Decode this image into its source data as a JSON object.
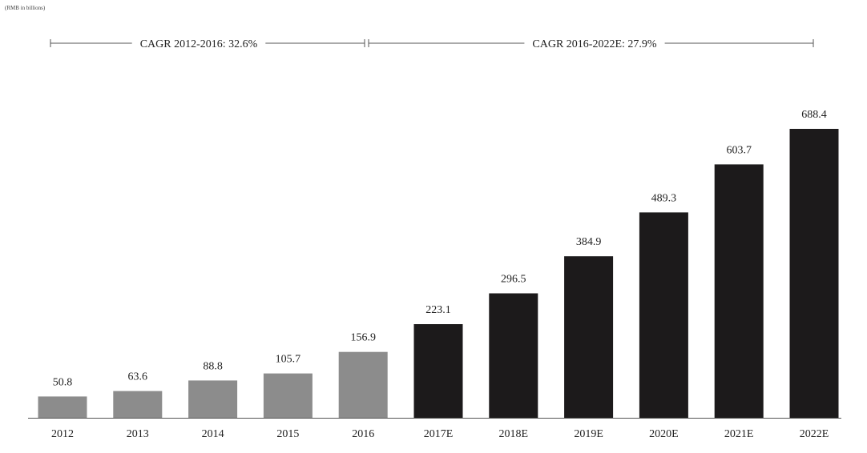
{
  "unit_note": "(RMB in billions)",
  "colors": {
    "historical": "#8c8c8c",
    "forecast": "#1c1a1b",
    "axis": "#555555",
    "text": "#222222"
  },
  "chart_data": {
    "type": "bar",
    "categories": [
      "2012",
      "2013",
      "2014",
      "2015",
      "2016",
      "2017E",
      "2018E",
      "2019E",
      "2020E",
      "2021E",
      "2022E"
    ],
    "values": [
      50.8,
      63.6,
      88.8,
      105.7,
      156.9,
      223.1,
      296.5,
      384.9,
      489.3,
      603.7,
      688.4
    ],
    "value_labels": [
      "50.8",
      "63.6",
      "88.8",
      "105.7",
      "156.9",
      "223.1",
      "296.5",
      "384.9",
      "489.3",
      "603.7",
      "688.4"
    ],
    "bar_styles": [
      "historical",
      "historical",
      "historical",
      "historical",
      "historical",
      "forecast",
      "forecast",
      "forecast",
      "forecast",
      "forecast",
      "forecast"
    ],
    "ylim": [
      0,
      688.4
    ],
    "grid": false,
    "legend": "none",
    "cagr_annotations": [
      {
        "label": "CAGR 2012-2016: 32.6%",
        "from": "2012",
        "to": "2016"
      },
      {
        "label": "CAGR 2016-2022E: 27.9%",
        "from": "2016",
        "to": "2022E"
      }
    ]
  }
}
